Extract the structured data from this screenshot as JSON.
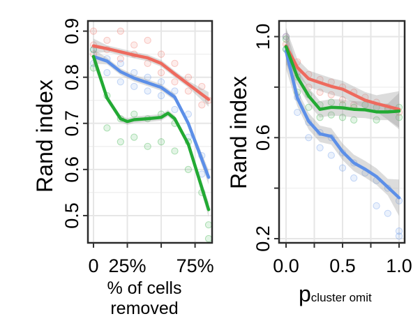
{
  "chart_data": [
    {
      "type": "scatter",
      "panel": "left",
      "ylabel": "Rand index",
      "xlabel_lines": [
        "% of cells",
        "removed"
      ],
      "xlim": [
        0,
        0.85
      ],
      "ylim": [
        0.45,
        0.91
      ],
      "x_ticks": [
        0,
        0.25,
        0.75
      ],
      "x_tick_labels": [
        "0",
        "25%",
        "75%"
      ],
      "y_ticks": [
        0.5,
        0.6,
        0.7,
        0.8,
        0.9
      ],
      "y_tick_labels": [
        "0.5",
        "0.6",
        "0.7",
        "0.8",
        "0.9"
      ],
      "grid": true,
      "smooth_with_band": true,
      "series": [
        {
          "color": "#ee6a5e",
          "trend_x": [
            0,
            0.1,
            0.2,
            0.3,
            0.4,
            0.5,
            0.6,
            0.7,
            0.85
          ],
          "trend_y": [
            0.868,
            0.862,
            0.855,
            0.848,
            0.842,
            0.83,
            0.807,
            0.785,
            0.752
          ],
          "points": [
            [
              0,
              0.9
            ],
            [
              0,
              0.87
            ],
            [
              0,
              0.85
            ],
            [
              0.1,
              0.88
            ],
            [
              0.1,
              0.86
            ],
            [
              0.2,
              0.9
            ],
            [
              0.2,
              0.84
            ],
            [
              0.3,
              0.87
            ],
            [
              0.3,
              0.85
            ],
            [
              0.4,
              0.88
            ],
            [
              0.4,
              0.83
            ],
            [
              0.5,
              0.85
            ],
            [
              0.5,
              0.81
            ],
            [
              0.6,
              0.83
            ],
            [
              0.6,
              0.79
            ],
            [
              0.7,
              0.8
            ],
            [
              0.7,
              0.77
            ],
            [
              0.8,
              0.78
            ],
            [
              0.8,
              0.74
            ],
            [
              0.85,
              0.75
            ]
          ]
        },
        {
          "color": "#5c8fe8",
          "trend_x": [
            0,
            0.1,
            0.2,
            0.3,
            0.4,
            0.5,
            0.6,
            0.7,
            0.85
          ],
          "trend_y": [
            0.845,
            0.835,
            0.812,
            0.798,
            0.788,
            0.778,
            0.757,
            0.7,
            0.583
          ],
          "points": [
            [
              0,
              0.86
            ],
            [
              0,
              0.83
            ],
            [
              0.1,
              0.84
            ],
            [
              0.1,
              0.81
            ],
            [
              0.2,
              0.83
            ],
            [
              0.2,
              0.79
            ],
            [
              0.3,
              0.81
            ],
            [
              0.3,
              0.78
            ],
            [
              0.4,
              0.8
            ],
            [
              0.4,
              0.77
            ],
            [
              0.5,
              0.79
            ],
            [
              0.5,
              0.76
            ],
            [
              0.6,
              0.77
            ],
            [
              0.6,
              0.73
            ],
            [
              0.7,
              0.72
            ],
            [
              0.7,
              0.67
            ],
            [
              0.8,
              0.63
            ],
            [
              0.8,
              0.59
            ]
          ]
        },
        {
          "color": "#22aa33",
          "trend_x": [
            0,
            0.1,
            0.2,
            0.25,
            0.3,
            0.4,
            0.5,
            0.55,
            0.6,
            0.7,
            0.85
          ],
          "trend_y": [
            0.845,
            0.755,
            0.71,
            0.704,
            0.708,
            0.71,
            0.713,
            0.722,
            0.71,
            0.655,
            0.513
          ],
          "points": [
            [
              0,
              0.86
            ],
            [
              0,
              0.82
            ],
            [
              0.1,
              0.76
            ],
            [
              0.1,
              0.69
            ],
            [
              0.2,
              0.71
            ],
            [
              0.2,
              0.66
            ],
            [
              0.3,
              0.72
            ],
            [
              0.3,
              0.67
            ],
            [
              0.4,
              0.71
            ],
            [
              0.4,
              0.65
            ],
            [
              0.5,
              0.72
            ],
            [
              0.5,
              0.66
            ],
            [
              0.6,
              0.7
            ],
            [
              0.6,
              0.64
            ],
            [
              0.7,
              0.66
            ],
            [
              0.7,
              0.6
            ],
            [
              0.8,
              0.55
            ],
            [
              0.85,
              0.48
            ],
            [
              0.85,
              0.45
            ]
          ]
        }
      ]
    },
    {
      "type": "scatter",
      "panel": "right",
      "ylabel": "Rand index",
      "xlabel_main": "p",
      "xlabel_sub": "cluster omit",
      "xlim": [
        0,
        1.0
      ],
      "ylim": [
        0.2,
        1.04
      ],
      "x_ticks": [
        0.0,
        0.5,
        1.0
      ],
      "x_tick_labels": [
        "0.0",
        "0.5",
        "1.0"
      ],
      "y_ticks": [
        0.2,
        0.6,
        1.0
      ],
      "y_tick_labels": [
        "0.2",
        "0.6",
        "1.0"
      ],
      "grid": true,
      "smooth_with_band": true,
      "series": [
        {
          "color": "#ee6a5e",
          "trend_x": [
            0,
            0.1,
            0.2,
            0.3,
            0.4,
            0.5,
            0.6,
            0.7,
            0.8,
            1.0
          ],
          "trend_y": [
            0.963,
            0.878,
            0.833,
            0.818,
            0.803,
            0.792,
            0.77,
            0.748,
            0.735,
            0.712
          ],
          "points": [
            [
              0,
              1.0
            ],
            [
              0,
              0.97
            ],
            [
              0.1,
              0.9
            ],
            [
              0.1,
              0.86
            ],
            [
              0.2,
              0.85
            ],
            [
              0.2,
              0.8
            ],
            [
              0.3,
              0.83
            ],
            [
              0.3,
              0.78
            ],
            [
              0.4,
              0.82
            ],
            [
              0.4,
              0.77
            ],
            [
              0.5,
              0.8
            ],
            [
              0.5,
              0.75
            ],
            [
              0.6,
              0.78
            ],
            [
              0.6,
              0.73
            ],
            [
              0.7,
              0.76
            ],
            [
              0.8,
              0.74
            ],
            [
              0.9,
              0.72
            ],
            [
              1.0,
              0.7
            ]
          ]
        },
        {
          "color": "#5c8fe8",
          "trend_x": [
            0,
            0.1,
            0.2,
            0.3,
            0.4,
            0.5,
            0.6,
            0.7,
            0.8,
            0.9,
            1.0
          ],
          "trend_y": [
            0.943,
            0.757,
            0.665,
            0.615,
            0.605,
            0.544,
            0.5,
            0.475,
            0.446,
            0.404,
            0.362
          ],
          "points": [
            [
              0,
              1.0
            ],
            [
              0,
              0.95
            ],
            [
              0.1,
              0.76
            ],
            [
              0.1,
              0.7
            ],
            [
              0.2,
              0.66
            ],
            [
              0.2,
              0.6
            ],
            [
              0.3,
              0.62
            ],
            [
              0.3,
              0.56
            ],
            [
              0.4,
              0.6
            ],
            [
              0.4,
              0.53
            ],
            [
              0.5,
              0.54
            ],
            [
              0.5,
              0.48
            ],
            [
              0.6,
              0.5
            ],
            [
              0.6,
              0.44
            ],
            [
              0.7,
              0.46
            ],
            [
              0.8,
              0.43
            ],
            [
              0.8,
              0.33
            ],
            [
              0.9,
              0.4
            ],
            [
              0.9,
              0.3
            ],
            [
              1.0,
              0.35
            ],
            [
              1.0,
              0.23
            ],
            [
              1.0,
              0.21
            ]
          ]
        },
        {
          "color": "#22aa33",
          "trend_x": [
            0,
            0.1,
            0.2,
            0.3,
            0.4,
            0.5,
            0.6,
            0.7,
            0.8,
            0.9,
            1.0
          ],
          "trend_y": [
            0.96,
            0.84,
            0.765,
            0.712,
            0.72,
            0.718,
            0.712,
            0.71,
            0.702,
            0.702,
            0.705
          ],
          "points": [
            [
              0,
              0.99
            ],
            [
              0,
              0.95
            ],
            [
              0.1,
              0.84
            ],
            [
              0.1,
              0.78
            ],
            [
              0.2,
              0.77
            ],
            [
              0.2,
              0.72
            ],
            [
              0.3,
              0.73
            ],
            [
              0.3,
              0.68
            ],
            [
              0.4,
              0.74
            ],
            [
              0.4,
              0.69
            ],
            [
              0.5,
              0.73
            ],
            [
              0.5,
              0.68
            ],
            [
              0.6,
              0.72
            ],
            [
              0.6,
              0.67
            ],
            [
              0.7,
              0.73
            ],
            [
              0.8,
              0.72
            ],
            [
              0.8,
              0.67
            ],
            [
              0.9,
              0.71
            ],
            [
              1.0,
              0.72
            ],
            [
              1.0,
              0.68
            ]
          ]
        }
      ]
    }
  ]
}
